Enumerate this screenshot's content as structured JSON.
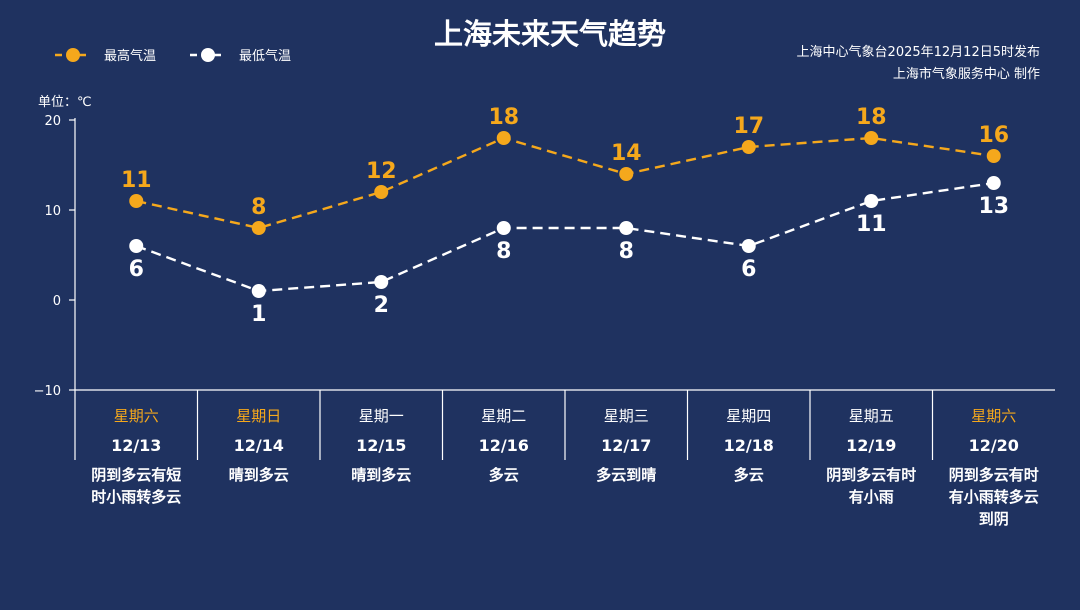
{
  "title": "上海未来天气趋势",
  "source_line1": "上海中心气象台2025年12月12日5时发布",
  "source_line2": "上海市气象服务中心  制作",
  "unit_label": "单位：℃",
  "colors": {
    "background": "#1f3260",
    "high": "#f5a81c",
    "low": "#ffffff",
    "weekend": "#f5a81c",
    "weekday": "#ffffff",
    "axis": "#ffffff"
  },
  "chart_data": {
    "type": "line",
    "title": "上海未来天气趋势",
    "ylabel": "单位：℃",
    "ylim": [
      -10,
      20
    ],
    "yticks": [
      20,
      10,
      0,
      -10
    ],
    "grid": false,
    "legend_position": "top-left",
    "categories": [
      "12/13",
      "12/14",
      "12/15",
      "12/16",
      "12/17",
      "12/18",
      "12/19",
      "12/20"
    ],
    "weekdays": [
      "星期六",
      "星期日",
      "星期一",
      "星期二",
      "星期三",
      "星期四",
      "星期五",
      "星期六"
    ],
    "weekend": [
      true,
      true,
      false,
      false,
      false,
      false,
      false,
      true
    ],
    "weather": [
      "阴到多云有短时小雨转多云",
      "晴到多云",
      "晴到多云",
      "多云",
      "多云到晴",
      "多云",
      "阴到多云有时有小雨",
      "阴到多云有时有小雨转多云到阴"
    ],
    "series": [
      {
        "name": "最高气温",
        "color": "#f5a81c",
        "values": [
          11,
          8,
          12,
          18,
          14,
          17,
          18,
          16
        ]
      },
      {
        "name": "最低气温",
        "color": "#ffffff",
        "values": [
          6,
          1,
          2,
          8,
          8,
          6,
          11,
          13
        ]
      }
    ]
  }
}
